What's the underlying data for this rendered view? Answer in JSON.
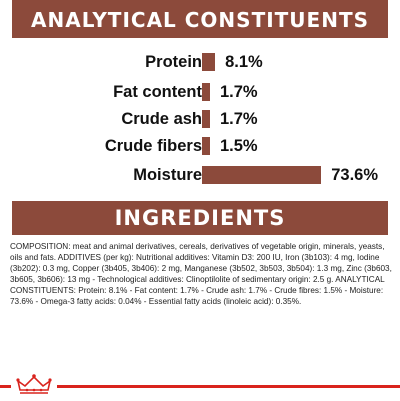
{
  "colors": {
    "brand_brown": "#8c4a3b",
    "accent_red": "#d9231d"
  },
  "analytical": {
    "title": "ANALYTICAL CONSTITUENTS",
    "items": [
      {
        "label": "Protein",
        "value_text": "8.1%",
        "value": 8.1
      },
      {
        "label": "Fat content",
        "value_text": "1.7%",
        "value": 1.7
      },
      {
        "label": "Crude ash",
        "value_text": "1.7%",
        "value": 1.7
      },
      {
        "label": "Crude fibers",
        "value_text": "1.5%",
        "value": 1.5
      },
      {
        "label": "Moisture",
        "value_text": "73.6%",
        "value": 73.6
      }
    ]
  },
  "ingredients": {
    "title": "INGREDIENTS",
    "composition": "COMPOSITION: meat and animal derivatives, cereals, derivatives of vegetable origin, minerals, yeasts, oils and fats. ADDITIVES (per kg): Nutritional additives: Vitamin D3: 200 IU, Iron (3b103): 4 mg, Iodine (3b202): 0.3 mg, Copper (3b405, 3b406): 2 mg, Manganese (3b502, 3b503, 3b504): 1.3 mg, Zinc (3b603, 3b605, 3b606): 13 mg - Technological additives: Clinoptilolite of sedimentary origin: 2.5 g. ANALYTICAL CONSTITUENTS: Protein: 8.1% - Fat content: 1.7% - Crude ash: 1.7% - Crude fibres: 1.5% - Moisture: 73.6% - Omega-3 fatty acids: 0.04% - Essential fatty acids (linoleic acid): 0.35%."
  },
  "footer": {
    "logo_icon": "crown-logo-icon"
  }
}
